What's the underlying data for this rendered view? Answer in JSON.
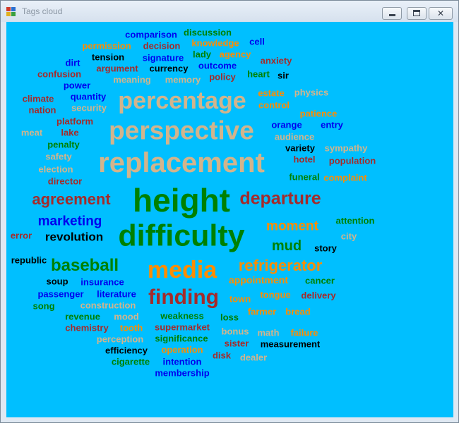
{
  "window": {
    "title": "Tags cloud",
    "close_glyph": "✕"
  },
  "colors": {
    "background": "#00bfff",
    "blue": "#0000ee",
    "green": "#008000",
    "brown": "#a52a2a",
    "tan": "#d2b48c",
    "orange": "#ff8c00",
    "black": "#000000"
  },
  "words": [
    {
      "text": "comparison",
      "color": "blue",
      "size": 13
    },
    {
      "text": "discussion",
      "color": "green",
      "size": 13
    },
    {
      "text": "permission",
      "color": "orange",
      "size": 13
    },
    {
      "text": "decision",
      "color": "brown",
      "size": 13
    },
    {
      "text": "knowledge",
      "color": "orange",
      "size": 13
    },
    {
      "text": "cell",
      "color": "blue",
      "size": 13
    },
    {
      "text": "tension",
      "color": "black",
      "size": 13
    },
    {
      "text": "signature",
      "color": "blue",
      "size": 13
    },
    {
      "text": "lady",
      "color": "green",
      "size": 13
    },
    {
      "text": "agency",
      "color": "orange",
      "size": 13
    },
    {
      "text": "dirt",
      "color": "blue",
      "size": 13
    },
    {
      "text": "argument",
      "color": "brown",
      "size": 13
    },
    {
      "text": "currency",
      "color": "black",
      "size": 13
    },
    {
      "text": "outcome",
      "color": "blue",
      "size": 13
    },
    {
      "text": "anxiety",
      "color": "brown",
      "size": 13
    },
    {
      "text": "confusion",
      "color": "brown",
      "size": 13
    },
    {
      "text": "meaning",
      "color": "tan",
      "size": 13
    },
    {
      "text": "memory",
      "color": "tan",
      "size": 13
    },
    {
      "text": "policy",
      "color": "brown",
      "size": 13
    },
    {
      "text": "heart",
      "color": "green",
      "size": 13
    },
    {
      "text": "sir",
      "color": "black",
      "size": 13
    },
    {
      "text": "power",
      "color": "blue",
      "size": 13
    },
    {
      "text": "estate",
      "color": "orange",
      "size": 13
    },
    {
      "text": "physics",
      "color": "tan",
      "size": 13
    },
    {
      "text": "climate",
      "color": "brown",
      "size": 13
    },
    {
      "text": "quantity",
      "color": "blue",
      "size": 13
    },
    {
      "text": "percentage",
      "color": "tan",
      "size": 34
    },
    {
      "text": "control",
      "color": "orange",
      "size": 13
    },
    {
      "text": "nation",
      "color": "brown",
      "size": 13
    },
    {
      "text": "security",
      "color": "tan",
      "size": 13
    },
    {
      "text": "patience",
      "color": "orange",
      "size": 13
    },
    {
      "text": "platform",
      "color": "brown",
      "size": 13
    },
    {
      "text": "orange",
      "color": "blue",
      "size": 13
    },
    {
      "text": "entry",
      "color": "blue",
      "size": 13
    },
    {
      "text": "meat",
      "color": "tan",
      "size": 13
    },
    {
      "text": "lake",
      "color": "brown",
      "size": 13
    },
    {
      "text": "perspective",
      "color": "tan",
      "size": 37
    },
    {
      "text": "audience",
      "color": "tan",
      "size": 13
    },
    {
      "text": "penalty",
      "color": "green",
      "size": 13
    },
    {
      "text": "variety",
      "color": "black",
      "size": 13
    },
    {
      "text": "sympathy",
      "color": "tan",
      "size": 13
    },
    {
      "text": "safety",
      "color": "tan",
      "size": 13
    },
    {
      "text": "replacement",
      "color": "tan",
      "size": 40
    },
    {
      "text": "hotel",
      "color": "brown",
      "size": 13
    },
    {
      "text": "population",
      "color": "brown",
      "size": 13
    },
    {
      "text": "election",
      "color": "tan",
      "size": 13
    },
    {
      "text": "funeral",
      "color": "green",
      "size": 13
    },
    {
      "text": "complaint",
      "color": "orange",
      "size": 13
    },
    {
      "text": "director",
      "color": "brown",
      "size": 13
    },
    {
      "text": "height",
      "color": "green",
      "size": 46
    },
    {
      "text": "agreement",
      "color": "brown",
      "size": 22
    },
    {
      "text": "departure",
      "color": "brown",
      "size": 25
    },
    {
      "text": "marketing",
      "color": "blue",
      "size": 19
    },
    {
      "text": "attention",
      "color": "green",
      "size": 13
    },
    {
      "text": "moment",
      "color": "orange",
      "size": 19
    },
    {
      "text": "error",
      "color": "brown",
      "size": 13
    },
    {
      "text": "revolution",
      "color": "black",
      "size": 17
    },
    {
      "text": "difficulty",
      "color": "green",
      "size": 43
    },
    {
      "text": "city",
      "color": "tan",
      "size": 13
    },
    {
      "text": "mud",
      "color": "green",
      "size": 20
    },
    {
      "text": "story",
      "color": "black",
      "size": 13
    },
    {
      "text": "republic",
      "color": "black",
      "size": 13
    },
    {
      "text": "baseball",
      "color": "green",
      "size": 24
    },
    {
      "text": "media",
      "color": "orange",
      "size": 34
    },
    {
      "text": "refrigerator",
      "color": "orange",
      "size": 22
    },
    {
      "text": "soup",
      "color": "black",
      "size": 13
    },
    {
      "text": "insurance",
      "color": "blue",
      "size": 13
    },
    {
      "text": "appointment",
      "color": "orange",
      "size": 14
    },
    {
      "text": "cancer",
      "color": "green",
      "size": 13
    },
    {
      "text": "passenger",
      "color": "blue",
      "size": 13
    },
    {
      "text": "literature",
      "color": "blue",
      "size": 13
    },
    {
      "text": "finding",
      "color": "brown",
      "size": 30
    },
    {
      "text": "tongue",
      "color": "orange",
      "size": 13
    },
    {
      "text": "town",
      "color": "orange",
      "size": 13
    },
    {
      "text": "delivery",
      "color": "brown",
      "size": 13
    },
    {
      "text": "song",
      "color": "green",
      "size": 13
    },
    {
      "text": "construction",
      "color": "tan",
      "size": 13
    },
    {
      "text": "farmer",
      "color": "orange",
      "size": 13
    },
    {
      "text": "bread",
      "color": "orange",
      "size": 13
    },
    {
      "text": "revenue",
      "color": "green",
      "size": 13
    },
    {
      "text": "mood",
      "color": "tan",
      "size": 13
    },
    {
      "text": "weakness",
      "color": "green",
      "size": 13
    },
    {
      "text": "loss",
      "color": "green",
      "size": 13
    },
    {
      "text": "chemistry",
      "color": "brown",
      "size": 13
    },
    {
      "text": "tooth",
      "color": "orange",
      "size": 13
    },
    {
      "text": "supermarket",
      "color": "brown",
      "size": 13
    },
    {
      "text": "bonus",
      "color": "tan",
      "size": 13
    },
    {
      "text": "math",
      "color": "tan",
      "size": 13
    },
    {
      "text": "failure",
      "color": "orange",
      "size": 13
    },
    {
      "text": "perception",
      "color": "tan",
      "size": 13
    },
    {
      "text": "significance",
      "color": "green",
      "size": 13
    },
    {
      "text": "sister",
      "color": "brown",
      "size": 13
    },
    {
      "text": "measurement",
      "color": "black",
      "size": 13
    },
    {
      "text": "efficiency",
      "color": "black",
      "size": 13
    },
    {
      "text": "operation",
      "color": "orange",
      "size": 13
    },
    {
      "text": "disk",
      "color": "brown",
      "size": 13
    },
    {
      "text": "dealer",
      "color": "tan",
      "size": 13
    },
    {
      "text": "cigarette",
      "color": "green",
      "size": 13
    },
    {
      "text": "intention",
      "color": "blue",
      "size": 13
    },
    {
      "text": "membership",
      "color": "blue",
      "size": 13
    }
  ]
}
